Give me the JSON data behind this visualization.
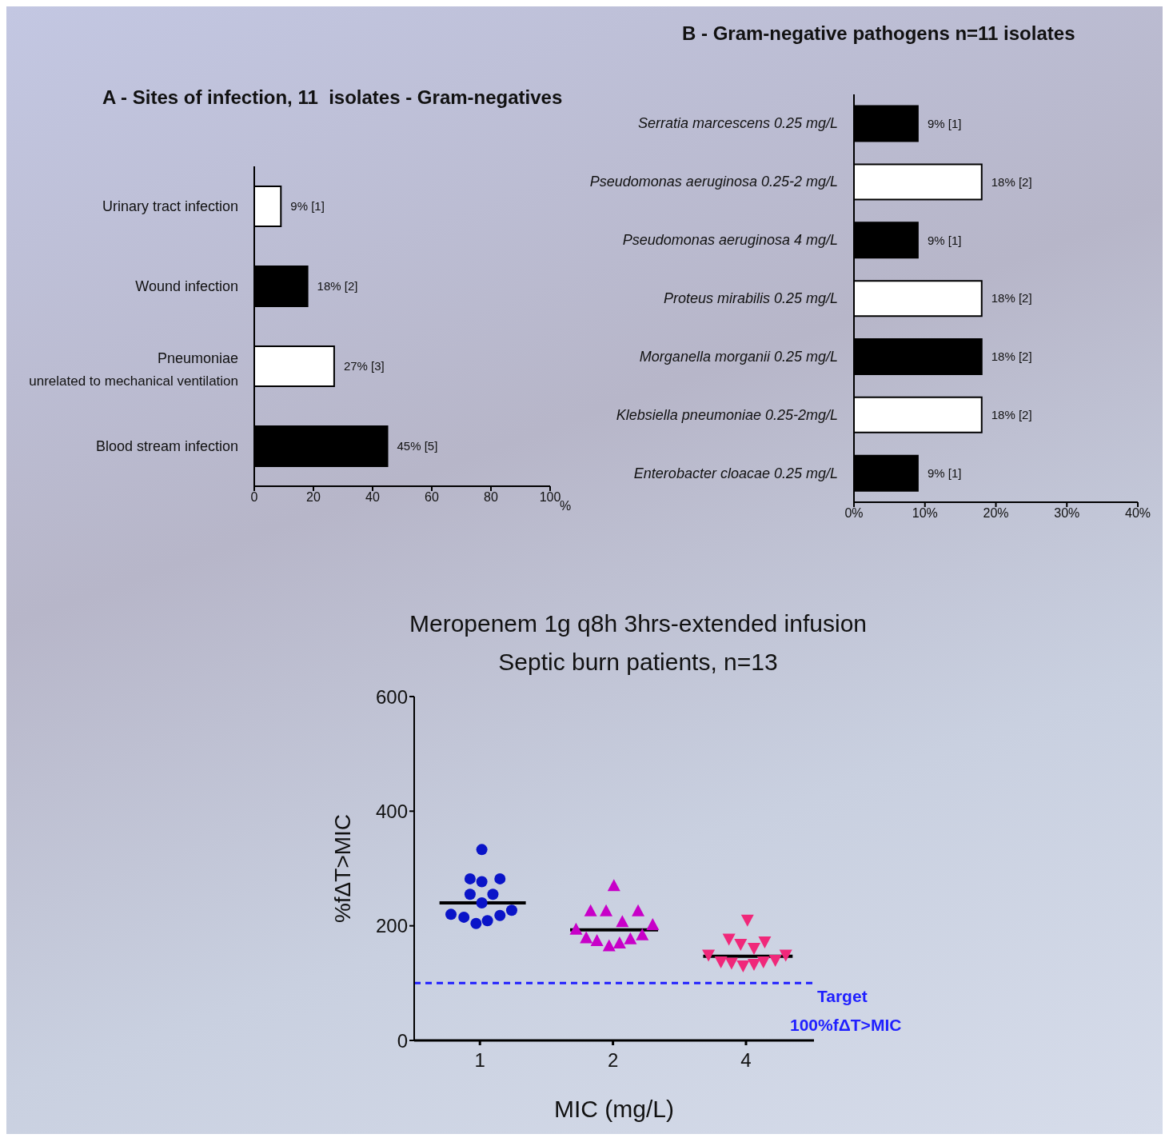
{
  "chart_data": [
    {
      "type": "bar",
      "orientation": "horizontal",
      "title": "A - Sites of infection, 11  isolates - Gram-negatives",
      "xlabel": "%",
      "categories": [
        "Urinary tract infection",
        "Wound infection",
        "Pneumoniae\nunrelated to mechanical ventilation",
        "Blood stream infection"
      ],
      "values": [
        9,
        18,
        27,
        45
      ],
      "colors": [
        "#ffffff",
        "#000000",
        "#ffffff",
        "#000000"
      ],
      "value_labels": [
        "9% [1]",
        "18% [2]",
        "27% [3]",
        "45% [5]"
      ],
      "xlim": [
        0,
        100
      ],
      "xticks": [
        0,
        20,
        40,
        60,
        80,
        100
      ]
    },
    {
      "type": "bar",
      "orientation": "horizontal",
      "title": "B - Gram-negative pathogens n=11 isolates",
      "categories": [
        "Serratia marcescens 0.25 mg/L",
        "Pseudomonas aeruginosa 0.25-2 mg/L",
        "Pseudomonas aeruginosa 4 mg/L",
        "Proteus mirabilis 0.25 mg/L",
        "Morganella morganii 0.25 mg/L",
        "Klebsiella pneumoniae 0.25-2mg/L",
        "Enterobacter cloacae 0.25 mg/L"
      ],
      "values": [
        9,
        18,
        9,
        18,
        18,
        18,
        9
      ],
      "colors": [
        "#000000",
        "#ffffff",
        "#000000",
        "#ffffff",
        "#000000",
        "#ffffff",
        "#000000"
      ],
      "value_labels": [
        "9% [1]",
        "18% [2]",
        "9% [1]",
        "18% [2]",
        "18% [2]",
        "18% [2]",
        "9% [1]"
      ],
      "xlim": [
        0,
        40
      ],
      "xticks": [
        {
          "value": 0,
          "label": "0%"
        },
        {
          "value": 10,
          "label": "10%"
        },
        {
          "value": 20,
          "label": "20%"
        },
        {
          "value": 30,
          "label": "30%"
        },
        {
          "value": 40,
          "label": "40%"
        }
      ]
    },
    {
      "type": "scatter",
      "title": "Meropenem 1g q8h 3hrs-extended infusion",
      "subtitle": "Septic burn patients, n=13",
      "xlabel": "MIC (mg/L)",
      "ylabel": "%fΔT>MIC",
      "log": "x",
      "xlim": [
        0.71,
        5.7
      ],
      "xticks": [
        1,
        2,
        4
      ],
      "ylim": [
        0,
        600
      ],
      "yticks": [
        0,
        200,
        400,
        600
      ],
      "ref_lines": [
        {
          "axis": "y",
          "value": 100,
          "label": "Target 100%fΔT>MIC",
          "color": "#1f1fff",
          "line_style": "dashed"
        }
      ],
      "series": [
        {
          "color": "#0a14c8",
          "marker": "circle",
          "x": [
            1.01,
            0.95,
            1.01,
            1.11,
            0.95,
            1.07,
            1.01,
            0.86,
            0.92,
            0.98,
            1.04,
            1.11,
            1.18
          ],
          "values": [
            333,
            282,
            277,
            282,
            255,
            255,
            240,
            220,
            215,
            204,
            209,
            218,
            227
          ]
        },
        {
          "color": "#c800c8",
          "marker": "triangle",
          "x": [
            2.01,
            1.78,
            1.93,
            2.28,
            2.1,
            2.46,
            1.65,
            1.74,
            1.84,
            1.96,
            2.07,
            2.19,
            2.33
          ],
          "values": [
            269,
            225,
            225,
            225,
            206,
            201,
            193,
            178,
            173,
            164,
            169,
            176,
            183
          ]
        },
        {
          "color": "#f0287a",
          "marker": "triangle-down",
          "x": [
            4.03,
            3.66,
            3.89,
            4.17,
            4.41,
            3.29,
            3.51,
            3.71,
            3.94,
            4.17,
            4.38,
            4.66,
            4.92
          ],
          "values": [
            211,
            178,
            169,
            162,
            173,
            150,
            138,
            136,
            131,
            134,
            138,
            141,
            150
          ]
        },
        {
          "type": "line",
          "color": "#000000",
          "marker": "none",
          "x": [
            0.81,
            1.27
          ],
          "values": [
            240,
            240
          ]
        },
        {
          "type": "line",
          "color": "#000000",
          "marker": "none",
          "x": [
            1.6,
            2.53
          ],
          "values": [
            193,
            193
          ]
        },
        {
          "type": "line",
          "color": "#000000",
          "marker": "none",
          "x": [
            3.2,
            5.1
          ],
          "values": [
            147,
            147
          ]
        }
      ]
    }
  ]
}
